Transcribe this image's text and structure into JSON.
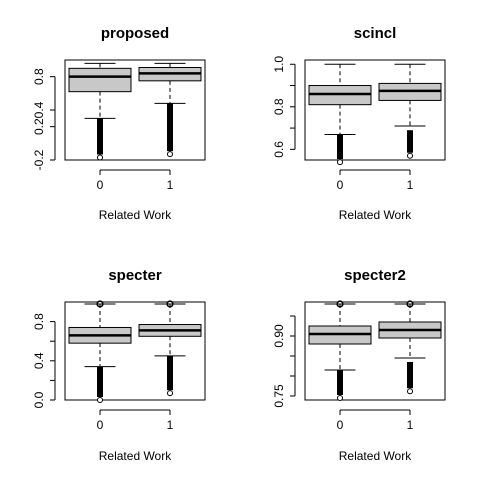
{
  "chart_data": [
    {
      "type": "boxplot",
      "title": "proposed",
      "xlabel": "Related Work",
      "ylabel": "",
      "ylim": [
        -0.2,
        1.0
      ],
      "yticks": [
        -0.2,
        0.2,
        0.4,
        0.8
      ],
      "ytick_labels": [
        "-0.2",
        "0.2",
        "0.4",
        "0.8"
      ],
      "categories": [
        "0",
        "1"
      ],
      "boxes": [
        {
          "category": "0",
          "whisker_low": 0.3,
          "q1": 0.62,
          "median": 0.8,
          "q3": 0.9,
          "whisker_high": 0.96,
          "outlier_low": -0.17,
          "outlier_high": 0.3
        },
        {
          "category": "1",
          "whisker_low": 0.48,
          "q1": 0.75,
          "median": 0.84,
          "q3": 0.91,
          "whisker_high": 0.96,
          "outlier_low": -0.13,
          "outlier_high": 0.48
        }
      ]
    },
    {
      "type": "boxplot",
      "title": "scincl",
      "xlabel": "Related Work",
      "ylabel": "",
      "ylim": [
        0.55,
        1.02
      ],
      "yticks": [
        0.6,
        0.7,
        0.8,
        0.9,
        1.0
      ],
      "ytick_labels": [
        "0.6",
        "",
        "0.8",
        "",
        "1.0"
      ],
      "categories": [
        "0",
        "1"
      ],
      "boxes": [
        {
          "category": "0",
          "whisker_low": 0.67,
          "q1": 0.81,
          "median": 0.86,
          "q3": 0.9,
          "whisker_high": 1.0,
          "outlier_low": 0.54,
          "outlier_high": 0.67
        },
        {
          "category": "1",
          "whisker_low": 0.71,
          "q1": 0.83,
          "median": 0.875,
          "q3": 0.91,
          "whisker_high": 1.0,
          "outlier_low": 0.57,
          "outlier_high": 0.69
        }
      ]
    },
    {
      "type": "boxplot",
      "title": "specter",
      "xlabel": "Related Work",
      "ylabel": "",
      "ylim": [
        0.0,
        1.0
      ],
      "yticks": [
        0.0,
        0.2,
        0.4,
        0.6,
        0.8
      ],
      "ytick_labels": [
        "0.0",
        "",
        "0.4",
        "",
        "0.8"
      ],
      "categories": [
        "0",
        "1"
      ],
      "boxes": [
        {
          "category": "0",
          "whisker_low": 0.34,
          "q1": 0.58,
          "median": 0.66,
          "q3": 0.74,
          "whisker_high": 0.98,
          "outlier_low": 0.0,
          "outlier_high": 0.34
        },
        {
          "category": "1",
          "whisker_low": 0.45,
          "q1": 0.65,
          "median": 0.71,
          "q3": 0.77,
          "whisker_high": 0.98,
          "outlier_low": 0.07,
          "outlier_high": 0.45
        }
      ]
    },
    {
      "type": "boxplot",
      "title": "specter2",
      "xlabel": "Related Work",
      "ylabel": "",
      "ylim": [
        0.74,
        0.985
      ],
      "yticks": [
        0.75,
        0.8,
        0.85,
        0.9,
        0.95
      ],
      "ytick_labels": [
        "0.75",
        "",
        "",
        "0.90",
        ""
      ],
      "categories": [
        "0",
        "1"
      ],
      "boxes": [
        {
          "category": "0",
          "whisker_low": 0.815,
          "q1": 0.88,
          "median": 0.905,
          "q3": 0.925,
          "whisker_high": 0.98,
          "outlier_low": 0.745,
          "outlier_high": 0.815
        },
        {
          "category": "1",
          "whisker_low": 0.845,
          "q1": 0.895,
          "median": 0.915,
          "q3": 0.935,
          "whisker_high": 0.98,
          "outlier_low": 0.762,
          "outlier_high": 0.835
        }
      ]
    }
  ]
}
